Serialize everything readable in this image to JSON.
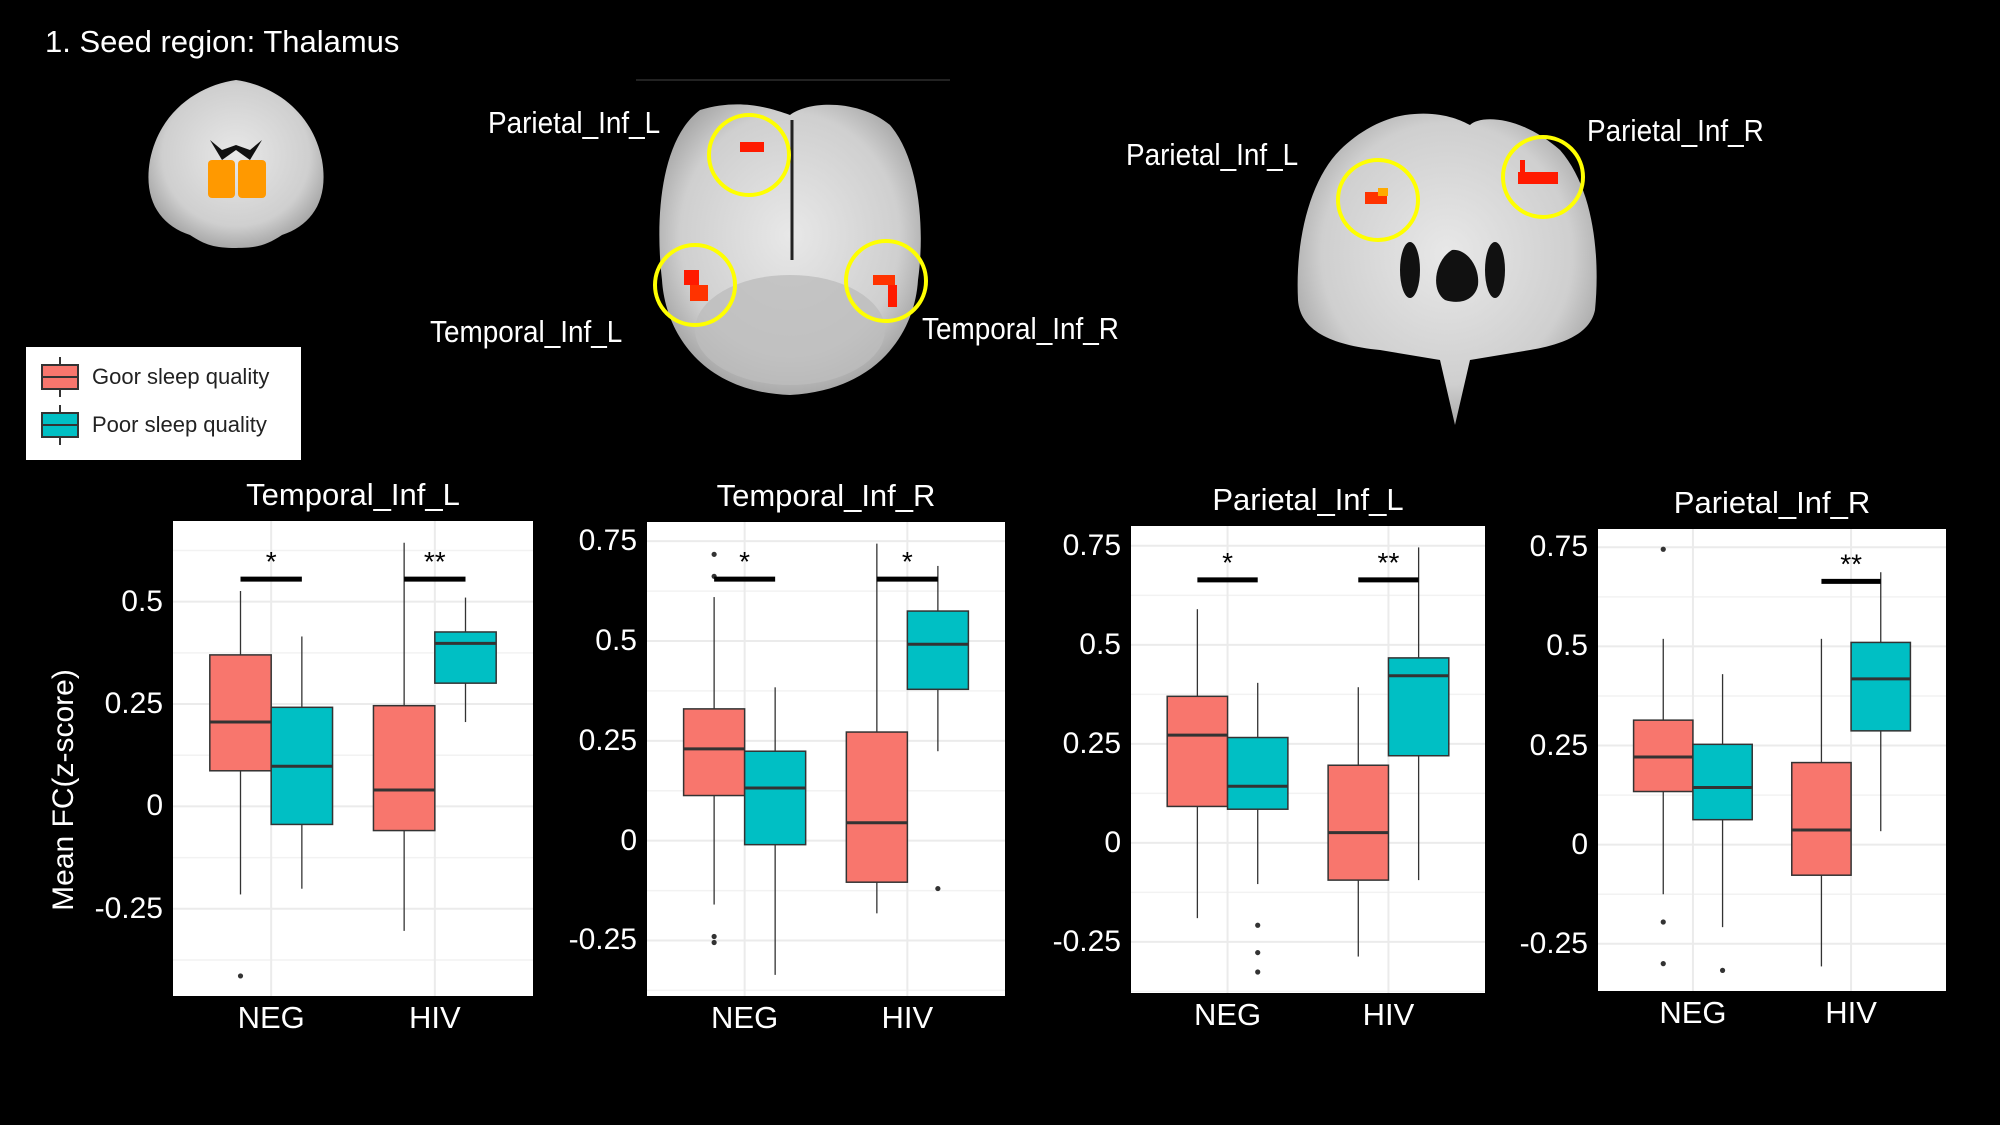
{
  "figure": {
    "title": "1. Seed region: Thalamus",
    "region_labels": {
      "coronal_parietal_l": "Parietal_Inf_L",
      "coronal_temporal_l": "Temporal_Inf_L",
      "coronal_temporal_r": "Temporal_Inf_R",
      "axial_parietal_l": "Parietal_Inf_L",
      "axial_parietal_r": "Parietal_Inf_R"
    },
    "colors": {
      "seed": "#ff9900",
      "cluster": "#ff1a00",
      "circle": "#ffff00",
      "good": "#f8766d",
      "poor": "#00bfc4"
    }
  },
  "legend": {
    "items": [
      {
        "label": "Goor sleep quality",
        "color": "#f8766d"
      },
      {
        "label": "Poor sleep quality",
        "color": "#00bfc4"
      }
    ]
  },
  "y_axis_title": "Mean FC(z-score)",
  "chart_data": [
    {
      "type": "box",
      "title": "Temporal_Inf_L",
      "categories": [
        "NEG",
        "HIV"
      ],
      "ylim": [
        -0.463,
        0.697
      ],
      "yticks": [
        -0.25,
        0,
        0.25,
        0.5
      ],
      "ytick_labels": [
        "-0.25",
        "0",
        "0.25",
        "0.5"
      ],
      "grid": true,
      "series": [
        {
          "name": "Goor sleep quality",
          "color": "#f8766d",
          "boxes": [
            {
              "min": -0.215,
              "q1": 0.087,
              "median": 0.206,
              "q3": 0.37,
              "max": 0.526,
              "outliers": [
                -0.414
              ]
            },
            {
              "min": -0.304,
              "q1": -0.059,
              "median": 0.04,
              "q3": 0.246,
              "max": 0.644,
              "outliers": []
            }
          ]
        },
        {
          "name": "Poor sleep quality",
          "color": "#00bfc4",
          "boxes": [
            {
              "min": -0.201,
              "q1": -0.044,
              "median": 0.098,
              "q3": 0.242,
              "max": 0.415,
              "outliers": []
            },
            {
              "min": 0.206,
              "q1": 0.301,
              "median": 0.398,
              "q3": 0.426,
              "max": 0.51,
              "outliers": []
            }
          ]
        }
      ],
      "significance": [
        {
          "category": "NEG",
          "label": "*",
          "y": 0.555
        },
        {
          "category": "HIV",
          "label": "**",
          "y": 0.555
        }
      ]
    },
    {
      "type": "box",
      "title": "Temporal_Inf_R",
      "categories": [
        "NEG",
        "HIV"
      ],
      "ylim": [
        -0.389,
        0.798
      ],
      "yticks": [
        -0.25,
        0,
        0.25,
        0.5,
        0.75
      ],
      "ytick_labels": [
        "-0.25",
        "0",
        "0.25",
        "0.5",
        "0.75"
      ],
      "grid": true,
      "series": [
        {
          "name": "Goor sleep quality",
          "color": "#f8766d",
          "boxes": [
            {
              "min": -0.16,
              "q1": 0.113,
              "median": 0.23,
              "q3": 0.33,
              "max": 0.61,
              "outliers": [
                0.717,
                0.662,
                -0.24,
                -0.255
              ]
            },
            {
              "min": -0.182,
              "q1": -0.104,
              "median": 0.045,
              "q3": 0.272,
              "max": 0.744,
              "outliers": []
            }
          ]
        },
        {
          "name": "Poor sleep quality",
          "color": "#00bfc4",
          "boxes": [
            {
              "min": -0.336,
              "q1": -0.01,
              "median": 0.132,
              "q3": 0.224,
              "max": 0.384,
              "outliers": []
            },
            {
              "min": 0.224,
              "q1": 0.379,
              "median": 0.492,
              "q3": 0.575,
              "max": 0.688,
              "outliers": [
                -0.12
              ]
            }
          ]
        }
      ],
      "significance": [
        {
          "category": "NEG",
          "label": "*",
          "y": 0.655
        },
        {
          "category": "HIV",
          "label": "*",
          "y": 0.655
        }
      ]
    },
    {
      "type": "box",
      "title": "Parietal_Inf_L",
      "categories": [
        "NEG",
        "HIV"
      ],
      "ylim": [
        -0.379,
        0.8
      ],
      "yticks": [
        -0.25,
        0,
        0.25,
        0.5,
        0.75
      ],
      "ytick_labels": [
        "-0.25",
        "0",
        "0.25",
        "0.5",
        "0.75"
      ],
      "grid": true,
      "series": [
        {
          "name": "Goor sleep quality",
          "color": "#f8766d",
          "boxes": [
            {
              "min": -0.19,
              "q1": 0.092,
              "median": 0.272,
              "q3": 0.37,
              "max": 0.59,
              "outliers": []
            },
            {
              "min": -0.287,
              "q1": -0.094,
              "median": 0.026,
              "q3": 0.196,
              "max": 0.393,
              "outliers": []
            }
          ]
        },
        {
          "name": "Poor sleep quality",
          "color": "#00bfc4",
          "boxes": [
            {
              "min": -0.104,
              "q1": 0.085,
              "median": 0.143,
              "q3": 0.266,
              "max": 0.404,
              "outliers": [
                -0.208,
                -0.277,
                -0.326
              ]
            },
            {
              "min": -0.094,
              "q1": 0.22,
              "median": 0.422,
              "q3": 0.467,
              "max": 0.746,
              "outliers": []
            }
          ]
        }
      ],
      "significance": [
        {
          "category": "NEG",
          "label": "*",
          "y": 0.664
        },
        {
          "category": "HIV",
          "label": "**",
          "y": 0.664
        }
      ]
    },
    {
      "type": "box",
      "title": "Parietal_Inf_R",
      "categories": [
        "NEG",
        "HIV"
      ],
      "ylim": [
        -0.369,
        0.796
      ],
      "yticks": [
        -0.25,
        0,
        0.25,
        0.5,
        0.75
      ],
      "ytick_labels": [
        "-0.25",
        "0",
        "0.25",
        "0.5",
        "0.75"
      ],
      "grid": true,
      "series": [
        {
          "name": "Goor sleep quality",
          "color": "#f8766d",
          "boxes": [
            {
              "min": -0.125,
              "q1": 0.134,
              "median": 0.221,
              "q3": 0.314,
              "max": 0.519,
              "outliers": [
                0.745,
                -0.195,
                -0.3
              ]
            },
            {
              "min": -0.307,
              "q1": -0.077,
              "median": 0.037,
              "q3": 0.207,
              "max": 0.519,
              "outliers": []
            }
          ]
        },
        {
          "name": "Poor sleep quality",
          "color": "#00bfc4",
          "boxes": [
            {
              "min": -0.208,
              "q1": 0.063,
              "median": 0.144,
              "q3": 0.253,
              "max": 0.43,
              "outliers": [
                -0.317
              ]
            },
            {
              "min": 0.034,
              "q1": 0.287,
              "median": 0.418,
              "q3": 0.51,
              "max": 0.687,
              "outliers": []
            }
          ]
        }
      ],
      "significance": [
        {
          "category": "HIV",
          "label": "**",
          "y": 0.664
        }
      ]
    }
  ]
}
